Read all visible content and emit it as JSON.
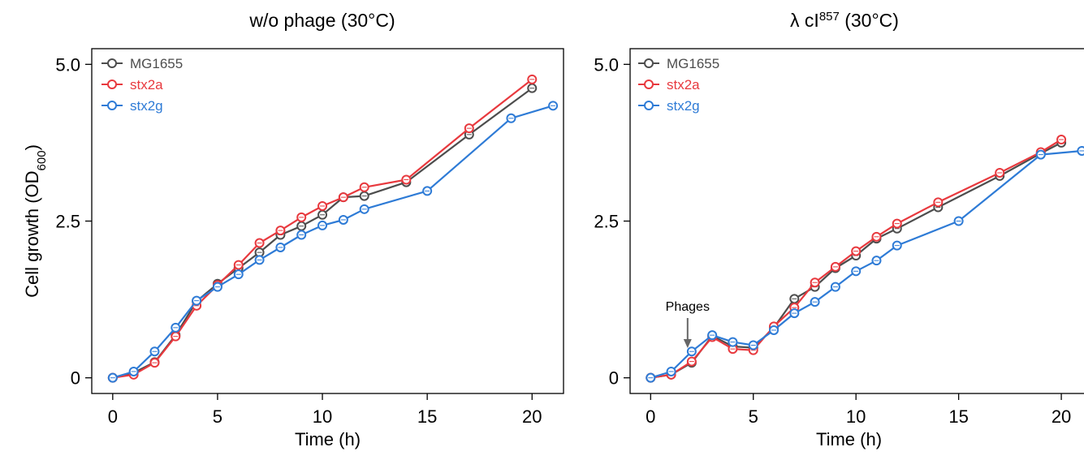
{
  "chart_data": [
    {
      "type": "line",
      "title": "w/o phage (30°C)",
      "title_parts": {
        "prefix": "w/o phage (30°C)",
        "superscript": "",
        "suffix": ""
      },
      "xlabel": "Time (h)",
      "ylabel": "Cell growth (OD",
      "ylabel_sub": "600",
      "ylabel_end": ")",
      "xlim": [
        -1,
        21.5
      ],
      "ylim": [
        -0.25,
        5.25
      ],
      "xticks": [
        "0",
        "5",
        "10",
        "15",
        "20"
      ],
      "yticks": [
        "0",
        "2.5",
        "5.0"
      ],
      "grid": false,
      "legend_position": "top-left",
      "series": [
        {
          "name": "MG1655",
          "color": "#4d4d4d",
          "x": [
            0,
            1,
            2,
            3,
            4,
            5,
            6,
            7,
            8,
            9,
            10,
            11,
            12,
            14,
            17,
            20
          ],
          "y": [
            0.0,
            0.08,
            0.25,
            0.68,
            1.22,
            1.5,
            1.75,
            2.0,
            2.28,
            2.42,
            2.6,
            2.88,
            2.9,
            3.12,
            3.88,
            4.62
          ]
        },
        {
          "name": "stx2a",
          "color": "#e8393e",
          "x": [
            0,
            1,
            2,
            3,
            4,
            5,
            6,
            7,
            8,
            9,
            10,
            11,
            12,
            14,
            17,
            20
          ],
          "y": [
            0.0,
            0.05,
            0.24,
            0.66,
            1.15,
            1.48,
            1.8,
            2.15,
            2.35,
            2.56,
            2.74,
            2.88,
            3.04,
            3.16,
            3.98,
            4.76
          ]
        },
        {
          "name": "stx2g",
          "color": "#2e7bd6",
          "x": [
            0,
            1,
            2,
            3,
            4,
            5,
            6,
            7,
            8,
            9,
            10,
            11,
            12,
            15,
            19,
            21
          ],
          "y": [
            0.0,
            0.1,
            0.42,
            0.8,
            1.23,
            1.45,
            1.65,
            1.88,
            2.08,
            2.28,
            2.43,
            2.52,
            2.69,
            2.98,
            4.14,
            4.34
          ]
        }
      ],
      "annotations": []
    },
    {
      "type": "line",
      "title": "λ cI857 (30°C)",
      "title_parts": {
        "prefix": "λ cI",
        "superscript": "857",
        "suffix": " (30°C)"
      },
      "xlabel": "Time (h)",
      "ylabel": "",
      "ylabel_sub": "",
      "ylabel_end": "",
      "xlim": [
        -1,
        21.5
      ],
      "ylim": [
        -0.25,
        5.25
      ],
      "xticks": [
        "0",
        "5",
        "10",
        "15",
        "20"
      ],
      "yticks": [
        "0",
        "2.5",
        "5.0"
      ],
      "grid": false,
      "legend_position": "top-left",
      "series": [
        {
          "name": "MG1655",
          "color": "#4d4d4d",
          "x": [
            0,
            1,
            2,
            3,
            4,
            5,
            6,
            7,
            8,
            9,
            10,
            11,
            12,
            14,
            17,
            19,
            20
          ],
          "y": [
            0.0,
            0.05,
            0.24,
            0.67,
            0.5,
            0.48,
            0.8,
            1.26,
            1.45,
            1.75,
            1.95,
            2.22,
            2.38,
            2.72,
            3.22,
            3.58,
            3.75
          ]
        },
        {
          "name": "stx2a",
          "color": "#e8393e",
          "x": [
            0,
            1,
            2,
            3,
            4,
            5,
            6,
            7,
            8,
            9,
            10,
            11,
            12,
            14,
            17,
            19,
            20
          ],
          "y": [
            0.0,
            0.05,
            0.26,
            0.65,
            0.46,
            0.44,
            0.82,
            1.12,
            1.52,
            1.77,
            2.02,
            2.25,
            2.46,
            2.8,
            3.27,
            3.6,
            3.8
          ]
        },
        {
          "name": "stx2g",
          "color": "#2e7bd6",
          "x": [
            0,
            1,
            2,
            3,
            4,
            5,
            6,
            7,
            8,
            9,
            10,
            11,
            12,
            15,
            19,
            21
          ],
          "y": [
            0.0,
            0.1,
            0.42,
            0.68,
            0.57,
            0.52,
            0.76,
            1.03,
            1.21,
            1.45,
            1.7,
            1.87,
            2.11,
            2.5,
            3.56,
            3.62
          ]
        }
      ],
      "annotations": [
        {
          "text": "Phages",
          "x": 1.8
        }
      ]
    }
  ]
}
